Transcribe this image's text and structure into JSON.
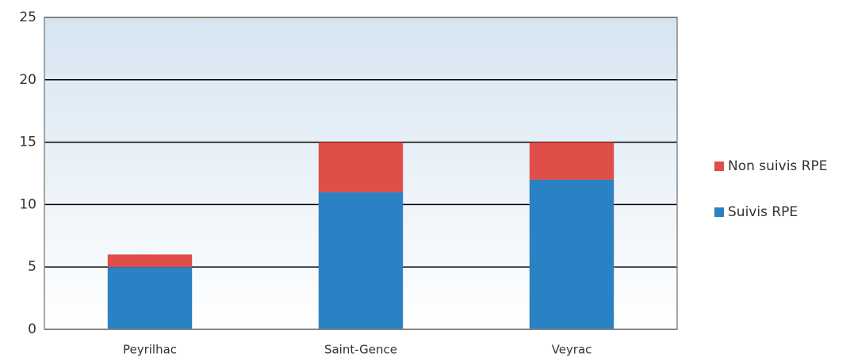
{
  "chart_data": {
    "type": "stacked_bar",
    "categories": [
      "Peyrilhac",
      "Saint-Gence",
      "Veyrac"
    ],
    "series": [
      {
        "name": "Suivis RPE",
        "color": "#2a81c3",
        "values": [
          5,
          11,
          12
        ]
      },
      {
        "name": "Non suivis RPE",
        "color": "#df4e48",
        "values": [
          1,
          4,
          3
        ]
      }
    ],
    "ylim": [
      0,
      25
    ],
    "yticks": [
      0,
      5,
      10,
      15,
      20,
      25
    ],
    "grid": true,
    "legend": "right"
  }
}
